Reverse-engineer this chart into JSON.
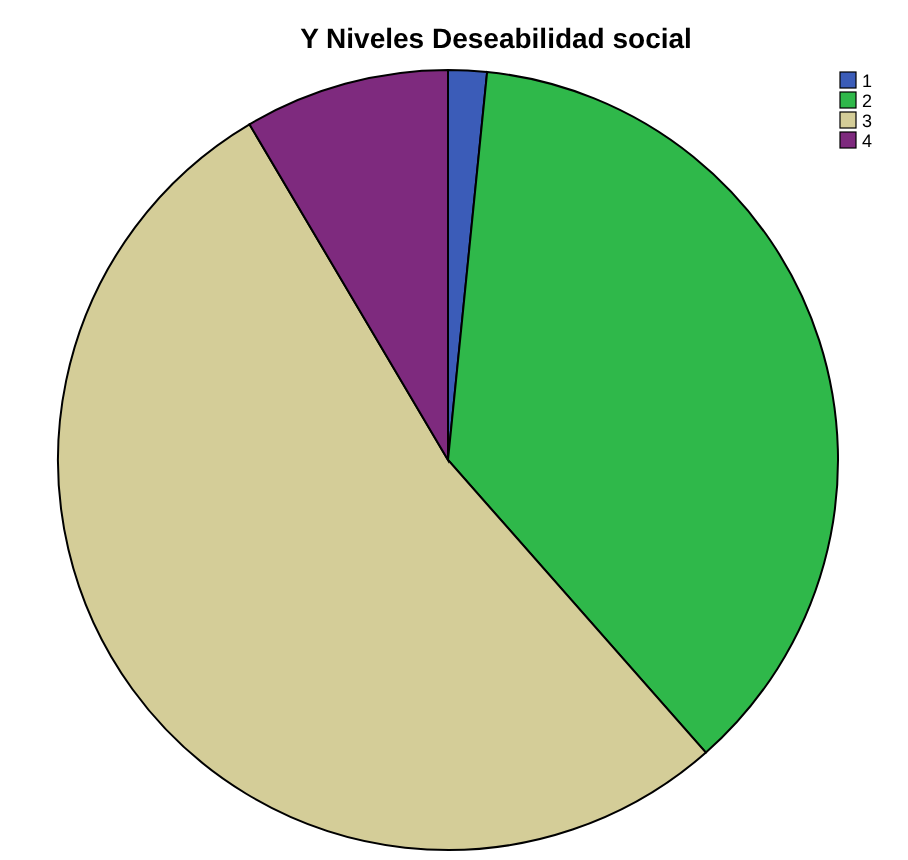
{
  "chart_data": {
    "type": "pie",
    "title": "Y Niveles Deseabilidad social",
    "categories": [
      "1",
      "2",
      "3",
      "4"
    ],
    "values": [
      1.6,
      36.9,
      53,
      8.5
    ],
    "colors": [
      "#3b5cb8",
      "#2fb84a",
      "#d4cd98",
      "#7e2a7e"
    ],
    "legend": "top right"
  }
}
